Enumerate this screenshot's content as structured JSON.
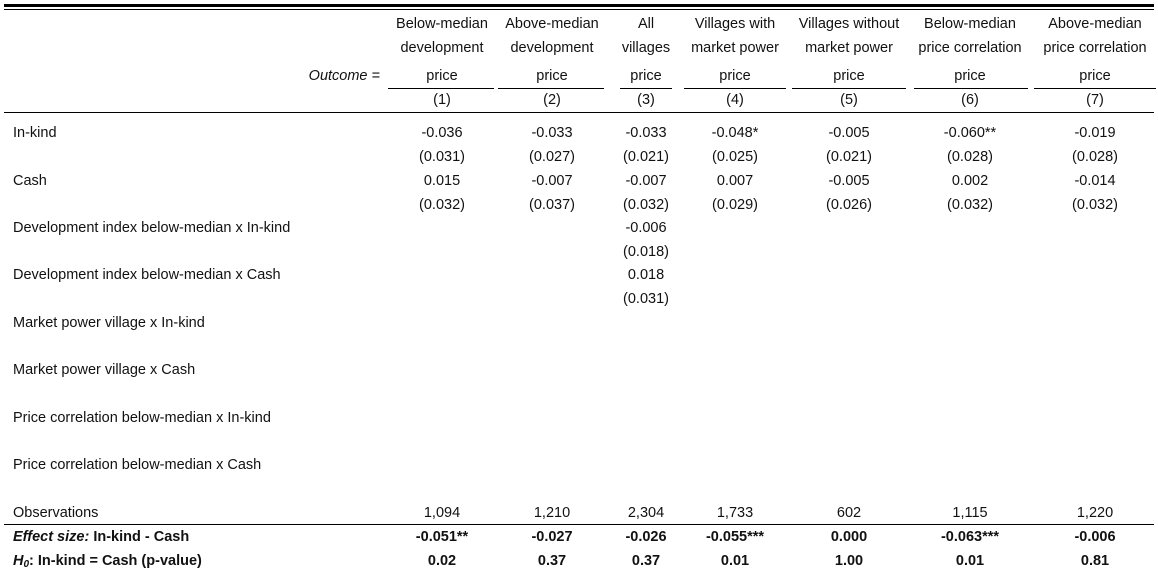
{
  "columns": [
    {
      "title_line1": "Below-median",
      "title_line2": "development",
      "outcome": "price",
      "number": "(1)"
    },
    {
      "title_line1": "Above-median",
      "title_line2": "development",
      "outcome": "price",
      "number": "(2)"
    },
    {
      "title_line1": "All",
      "title_line2": "villages",
      "outcome": "price",
      "number": "(3)"
    },
    {
      "title_line1": "Villages with",
      "title_line2": "market power",
      "outcome": "price",
      "number": "(4)"
    },
    {
      "title_line1": "Villages without",
      "title_line2": "market power",
      "outcome": "price",
      "number": "(5)"
    },
    {
      "title_line1": "Below-median",
      "title_line2": "price correlation",
      "outcome": "price",
      "number": "(6)"
    },
    {
      "title_line1": "Above-median",
      "title_line2": "price correlation",
      "outcome": "price",
      "number": "(7)"
    }
  ],
  "outcome_label": "Outcome =",
  "rows": [
    {
      "label": "In-kind",
      "coef": [
        "-0.036",
        "-0.033",
        "-0.033",
        "-0.048*",
        "-0.005",
        "-0.060**",
        "-0.019"
      ],
      "se": [
        "(0.031)",
        "(0.027)",
        "(0.021)",
        "(0.025)",
        "(0.021)",
        "(0.028)",
        "(0.028)"
      ]
    },
    {
      "label": "Cash",
      "coef": [
        "0.015",
        "-0.007",
        "-0.007",
        "0.007",
        "-0.005",
        "0.002",
        "-0.014"
      ],
      "se": [
        "(0.032)",
        "(0.037)",
        "(0.032)",
        "(0.029)",
        "(0.026)",
        "(0.032)",
        "(0.032)"
      ]
    },
    {
      "label": "Development index below-median x In-kind",
      "coef": [
        "",
        "",
        "-0.006",
        "",
        "",
        "",
        ""
      ],
      "se": [
        "",
        "",
        "(0.018)",
        "",
        "",
        "",
        ""
      ]
    },
    {
      "label": "Development index below-median x Cash",
      "coef": [
        "",
        "",
        "0.018",
        "",
        "",
        "",
        ""
      ],
      "se": [
        "",
        "",
        "(0.031)",
        "",
        "",
        "",
        ""
      ]
    },
    {
      "label": "Market power village x In-kind",
      "coef": [
        "",
        "",
        "",
        "",
        "",
        "",
        ""
      ],
      "se": [
        "",
        "",
        "",
        "",
        "",
        "",
        ""
      ]
    },
    {
      "label": "Market power village x Cash",
      "coef": [
        "",
        "",
        "",
        "",
        "",
        "",
        ""
      ],
      "se": [
        "",
        "",
        "",
        "",
        "",
        "",
        ""
      ]
    },
    {
      "label": "Price correlation below-median x In-kind",
      "coef": [
        "",
        "",
        "",
        "",
        "",
        "",
        ""
      ],
      "se": [
        "",
        "",
        "",
        "",
        "",
        "",
        ""
      ]
    },
    {
      "label": "Price correlation below-median x Cash",
      "coef": [
        "",
        "",
        "",
        "",
        "",
        "",
        ""
      ],
      "se": [
        "",
        "",
        "",
        "",
        "",
        "",
        ""
      ]
    }
  ],
  "observations": {
    "label": "Observations",
    "values": [
      "1,094",
      "1,210",
      "2,304",
      "1,733",
      "602",
      "1,115",
      "1,220"
    ]
  },
  "effect_size": {
    "label_italic": "Effect size:",
    "label_rest": " In-kind - Cash",
    "values": [
      "-0.051**",
      "-0.027",
      "-0.026",
      "-0.055***",
      "0.000",
      "-0.063***",
      "-0.006"
    ]
  },
  "h0": {
    "label_h": "H",
    "label_sub": "0",
    "label_rest": ": In-kind = Cash (p-value)",
    "values": [
      "0.02",
      "0.37",
      "0.37",
      "0.01",
      "1.00",
      "0.01",
      "0.81"
    ]
  }
}
